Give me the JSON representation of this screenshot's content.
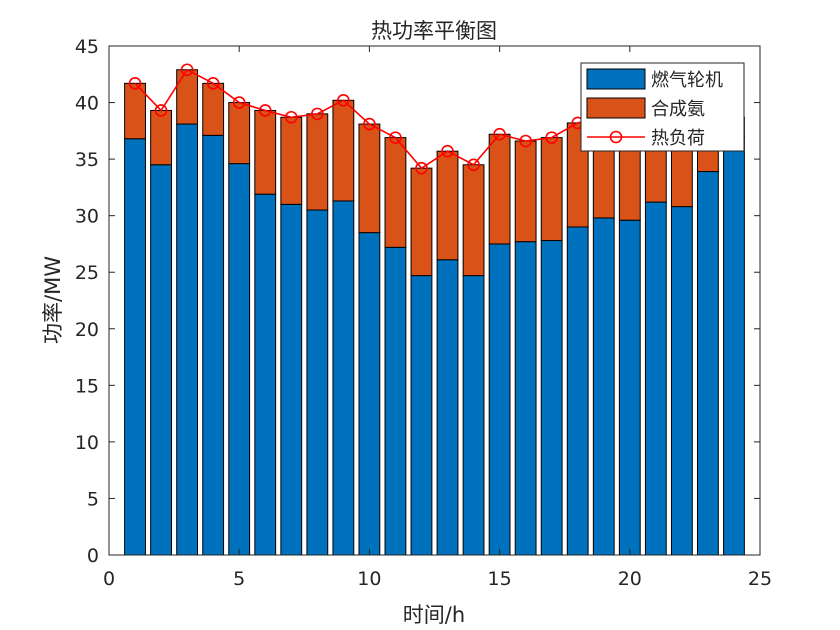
{
  "chart_data": {
    "type": "bar",
    "stacked": true,
    "title": "热功率平衡图",
    "xlabel": "时间/h",
    "ylabel": "功率/MW",
    "xlim": [
      0,
      25
    ],
    "ylim": [
      0,
      45
    ],
    "xticks": [
      0,
      5,
      10,
      15,
      20,
      25
    ],
    "yticks": [
      0,
      5,
      10,
      15,
      20,
      25,
      30,
      35,
      40,
      45
    ],
    "grid": false,
    "legend_position": "top-right",
    "x": [
      1,
      2,
      3,
      4,
      5,
      6,
      7,
      8,
      9,
      10,
      11,
      12,
      13,
      14,
      15,
      16,
      17,
      18,
      19,
      20,
      21,
      22,
      23,
      24
    ],
    "series": [
      {
        "name": "燃气轮机",
        "kind": "bar",
        "color": "#0072BD",
        "values": [
          36.8,
          34.5,
          38.1,
          37.1,
          34.6,
          31.9,
          31.0,
          30.5,
          31.3,
          28.5,
          27.2,
          24.7,
          26.1,
          24.7,
          27.5,
          27.7,
          27.8,
          29.0,
          29.8,
          29.6,
          31.2,
          30.8,
          33.9,
          37.0
        ]
      },
      {
        "name": "合成氨",
        "kind": "bar",
        "color": "#D95319",
        "values": [
          4.9,
          4.8,
          4.8,
          4.6,
          5.4,
          7.4,
          7.7,
          8.5,
          8.9,
          9.6,
          9.7,
          9.5,
          9.6,
          9.8,
          9.7,
          8.9,
          9.1,
          9.2,
          9.0,
          7.5,
          6.8,
          7.0,
          3.5,
          1.7
        ]
      },
      {
        "name": "热负荷",
        "kind": "line",
        "color": "#FF0000",
        "values": [
          41.7,
          39.3,
          42.9,
          41.7,
          40.0,
          39.3,
          38.7,
          39.0,
          40.2,
          38.1,
          36.9,
          34.2,
          35.7,
          34.5,
          37.2,
          36.6,
          36.9,
          38.2,
          38.8,
          37.1,
          38.0,
          37.8,
          37.4,
          38.7
        ]
      }
    ]
  }
}
